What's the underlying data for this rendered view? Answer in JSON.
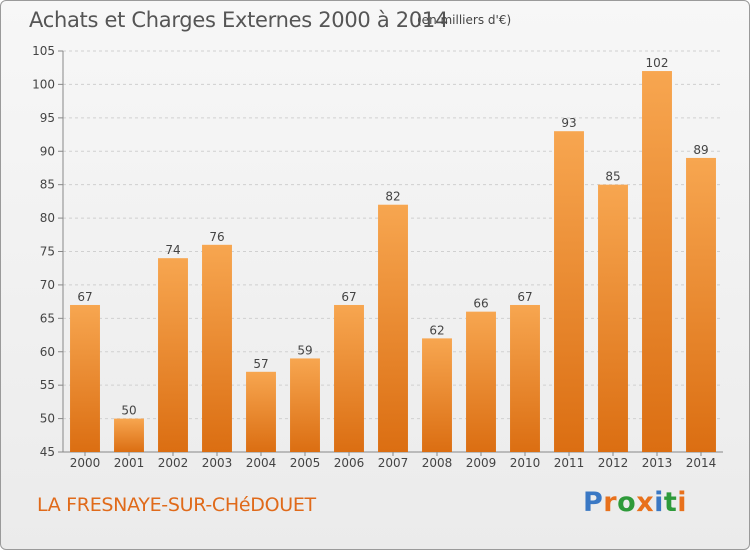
{
  "header": {
    "title": "Achats et Charges Externes 2000 à 2014",
    "unit": "(en milliers d'€)"
  },
  "footer": {
    "commune": "LA FRESNAYE-SUR-CHéDOUET",
    "logo": "Proxiti"
  },
  "colors": {
    "bar_top": "#f7a650",
    "bar_bottom": "#db6e12",
    "commune_text": "#e06a1a",
    "logo_letters": [
      "#3a78c4",
      "#e8711c",
      "#2e9a3a",
      "#e8711c",
      "#3a78c4",
      "#2e9a3a",
      "#e8711c"
    ]
  },
  "chart_data": {
    "type": "bar",
    "title": "Achats et Charges Externes 2000 à 2014",
    "xlabel": "",
    "ylabel": "",
    "categories": [
      "2000",
      "2001",
      "2002",
      "2003",
      "2004",
      "2005",
      "2006",
      "2007",
      "2008",
      "2009",
      "2010",
      "2011",
      "2012",
      "2013",
      "2014"
    ],
    "values": [
      67,
      50,
      74,
      76,
      57,
      59,
      67,
      82,
      62,
      66,
      67,
      93,
      85,
      102,
      89
    ],
    "ylim": [
      45,
      105
    ],
    "yticks": [
      45,
      50,
      55,
      60,
      65,
      70,
      75,
      80,
      85,
      90,
      95,
      100,
      105
    ],
    "grid": true,
    "data_labels": true
  }
}
